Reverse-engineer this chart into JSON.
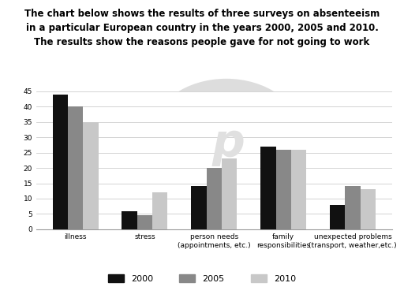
{
  "title": "The chart below shows the results of three surveys on absenteeism\nin a particular European country in the years 2000, 2005 and 2010.\nThe results show the reasons people gave for not going to work",
  "categories": [
    "illness",
    "stress",
    "person needs\n(appointments, etc.)",
    "family\nresponsibilities",
    "unexpected problems\n(transport, weather,etc.)"
  ],
  "series": {
    "2000": [
      44,
      6,
      14,
      27,
      8
    ],
    "2005": [
      40,
      4.5,
      20,
      26,
      14
    ],
    "2010": [
      35,
      12,
      23,
      26,
      13
    ]
  },
  "colors": {
    "2000": "#111111",
    "2005": "#888888",
    "2010": "#c8c8c8"
  },
  "ylim": [
    0,
    45
  ],
  "yticks": [
    0,
    5,
    10,
    15,
    20,
    25,
    30,
    35,
    40,
    45
  ],
  "background_color": "#ffffff",
  "title_fontsize": 8.5,
  "bar_width": 0.22,
  "legend_labels": [
    "2000",
    "2005",
    "2010"
  ]
}
